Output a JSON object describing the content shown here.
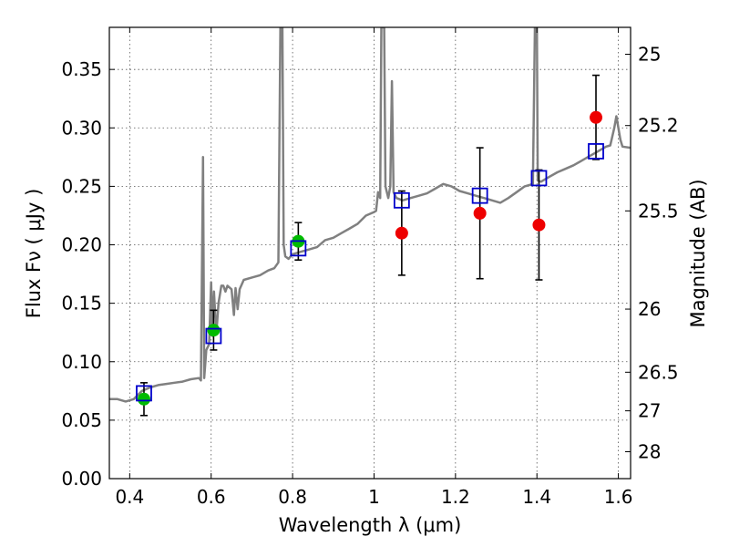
{
  "chart_data": {
    "type": "scatter",
    "title": "",
    "xlabel": "Wavelength  λ (μm)",
    "ylabel": "Flux  Fν  ( μJy )",
    "ylabel_right": "Magnitude (AB)",
    "xlim": [
      0.35,
      1.63
    ],
    "ylim": [
      0.0,
      0.386
    ],
    "grid": true,
    "x_ticks": [
      0.4,
      0.6,
      0.8,
      1.0,
      1.2,
      1.4,
      1.6
    ],
    "x_tick_labels": [
      "0.4",
      "0.6",
      "0.8",
      "1",
      "1.2",
      "1.4",
      "1.6"
    ],
    "y_ticks": [
      0.0,
      0.05,
      0.1,
      0.15,
      0.2,
      0.25,
      0.3,
      0.35
    ],
    "y_tick_labels": [
      "0.00",
      "0.05",
      "0.10",
      "0.15",
      "0.20",
      "0.25",
      "0.30",
      "0.35"
    ],
    "right_ticks": [
      {
        "label": "25",
        "flux": 0.363
      },
      {
        "label": "25.2",
        "flux": 0.302
      },
      {
        "label": "25.5",
        "flux": 0.229
      },
      {
        "label": "26",
        "flux": 0.145
      },
      {
        "label": "26.5",
        "flux": 0.091
      },
      {
        "label": "27",
        "flux": 0.058
      },
      {
        "label": "28",
        "flux": 0.023
      }
    ],
    "colors": {
      "model": "#808080",
      "observed_optical": "#00bb00",
      "observed_nir": "#ee0000",
      "model_photometry": "#0000cc",
      "errorbar": "#000000",
      "grid": "#555555"
    },
    "series": [
      {
        "name": "observed_optical",
        "marker": "circle",
        "points": [
          {
            "x": 0.435,
            "y": 0.068,
            "err": 0.014
          },
          {
            "x": 0.606,
            "y": 0.127,
            "err": 0.017
          },
          {
            "x": 0.814,
            "y": 0.203,
            "err": 0.016
          }
        ]
      },
      {
        "name": "observed_nir",
        "marker": "circle",
        "points": [
          {
            "x": 1.068,
            "y": 0.21,
            "err": 0.036
          },
          {
            "x": 1.26,
            "y": 0.227,
            "err": 0.056
          },
          {
            "x": 1.405,
            "y": 0.217,
            "err": 0.047
          },
          {
            "x": 1.545,
            "y": 0.309,
            "err": 0.036
          }
        ]
      },
      {
        "name": "model_photometry",
        "marker": "square",
        "points": [
          {
            "x": 0.435,
            "y": 0.073
          },
          {
            "x": 0.606,
            "y": 0.122
          },
          {
            "x": 0.814,
            "y": 0.197
          },
          {
            "x": 1.068,
            "y": 0.238
          },
          {
            "x": 1.26,
            "y": 0.242
          },
          {
            "x": 1.405,
            "y": 0.257
          },
          {
            "x": 1.545,
            "y": 0.28
          }
        ]
      }
    ],
    "model_spectrum": [
      [
        0.35,
        0.068
      ],
      [
        0.37,
        0.068
      ],
      [
        0.39,
        0.066
      ],
      [
        0.41,
        0.068
      ],
      [
        0.43,
        0.075
      ],
      [
        0.45,
        0.078
      ],
      [
        0.47,
        0.08
      ],
      [
        0.49,
        0.081
      ],
      [
        0.51,
        0.082
      ],
      [
        0.53,
        0.083
      ],
      [
        0.55,
        0.085
      ],
      [
        0.57,
        0.086
      ],
      [
        0.575,
        0.084
      ],
      [
        0.58,
        0.275
      ],
      [
        0.583,
        0.086
      ],
      [
        0.588,
        0.11
      ],
      [
        0.595,
        0.115
      ],
      [
        0.6,
        0.168
      ],
      [
        0.603,
        0.122
      ],
      [
        0.607,
        0.16
      ],
      [
        0.61,
        0.14
      ],
      [
        0.613,
        0.125
      ],
      [
        0.618,
        0.15
      ],
      [
        0.625,
        0.165
      ],
      [
        0.63,
        0.165
      ],
      [
        0.635,
        0.16
      ],
      [
        0.64,
        0.165
      ],
      [
        0.65,
        0.162
      ],
      [
        0.656,
        0.14
      ],
      [
        0.66,
        0.163
      ],
      [
        0.665,
        0.145
      ],
      [
        0.67,
        0.162
      ],
      [
        0.68,
        0.17
      ],
      [
        0.7,
        0.172
      ],
      [
        0.72,
        0.174
      ],
      [
        0.74,
        0.178
      ],
      [
        0.755,
        0.18
      ],
      [
        0.765,
        0.185
      ],
      [
        0.77,
        0.386
      ],
      [
        0.775,
        0.386
      ],
      [
        0.778,
        0.2
      ],
      [
        0.782,
        0.19
      ],
      [
        0.79,
        0.188
      ],
      [
        0.8,
        0.192
      ],
      [
        0.82,
        0.194
      ],
      [
        0.84,
        0.196
      ],
      [
        0.86,
        0.198
      ],
      [
        0.88,
        0.204
      ],
      [
        0.9,
        0.206
      ],
      [
        0.92,
        0.21
      ],
      [
        0.94,
        0.214
      ],
      [
        0.96,
        0.218
      ],
      [
        0.98,
        0.225
      ],
      [
        1.0,
        0.228
      ],
      [
        1.005,
        0.229
      ],
      [
        1.01,
        0.245
      ],
      [
        1.015,
        0.24
      ],
      [
        1.018,
        0.386
      ],
      [
        1.025,
        0.386
      ],
      [
        1.028,
        0.25
      ],
      [
        1.035,
        0.24
      ],
      [
        1.04,
        0.25
      ],
      [
        1.044,
        0.34
      ],
      [
        1.048,
        0.245
      ],
      [
        1.055,
        0.24
      ],
      [
        1.07,
        0.238
      ],
      [
        1.09,
        0.24
      ],
      [
        1.11,
        0.242
      ],
      [
        1.13,
        0.244
      ],
      [
        1.15,
        0.248
      ],
      [
        1.17,
        0.252
      ],
      [
        1.19,
        0.25
      ],
      [
        1.21,
        0.246
      ],
      [
        1.23,
        0.244
      ],
      [
        1.25,
        0.242
      ],
      [
        1.27,
        0.24
      ],
      [
        1.29,
        0.238
      ],
      [
        1.31,
        0.236
      ],
      [
        1.33,
        0.24
      ],
      [
        1.35,
        0.245
      ],
      [
        1.37,
        0.25
      ],
      [
        1.39,
        0.252
      ],
      [
        1.395,
        0.386
      ],
      [
        1.4,
        0.386
      ],
      [
        1.402,
        0.255
      ],
      [
        1.41,
        0.254
      ],
      [
        1.43,
        0.258
      ],
      [
        1.45,
        0.262
      ],
      [
        1.47,
        0.265
      ],
      [
        1.49,
        0.268
      ],
      [
        1.51,
        0.272
      ],
      [
        1.53,
        0.276
      ],
      [
        1.55,
        0.28
      ],
      [
        1.57,
        0.284
      ],
      [
        1.58,
        0.285
      ],
      [
        1.59,
        0.3
      ],
      [
        1.595,
        0.31
      ],
      [
        1.6,
        0.3
      ],
      [
        1.605,
        0.29
      ],
      [
        1.61,
        0.284
      ],
      [
        1.63,
        0.283
      ]
    ]
  }
}
